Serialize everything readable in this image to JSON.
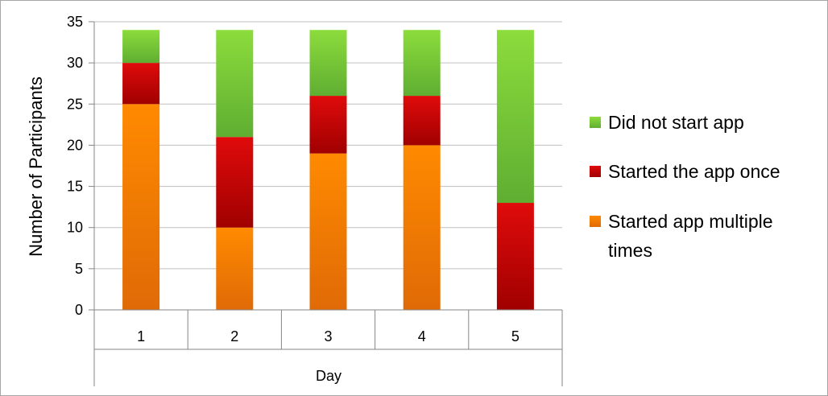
{
  "chart_data": {
    "type": "bar",
    "stacked": true,
    "categories": [
      "1",
      "2",
      "3",
      "4",
      "5"
    ],
    "series": [
      {
        "name": "Started app multiple times",
        "values": [
          25,
          10,
          19,
          20,
          0
        ],
        "color": "#f07d0a"
      },
      {
        "name": "Started the app once",
        "values": [
          5,
          11,
          7,
          6,
          13
        ],
        "color": "#c00000"
      },
      {
        "name": "Did not start app",
        "values": [
          4,
          13,
          8,
          8,
          21
        ],
        "color": "#7ac143"
      }
    ],
    "ylabel": "Number of Participants",
    "xlabel": "Day",
    "ylim": [
      0,
      35
    ],
    "yticks": [
      "0",
      "5",
      "10",
      "15",
      "20",
      "25",
      "30",
      "35"
    ],
    "grid": true,
    "legend_position": "right",
    "legend": [
      {
        "lines": [
          "Did not start app"
        ],
        "color": "#7ac143"
      },
      {
        "lines": [
          "Started the app once"
        ],
        "color": "#c00000"
      },
      {
        "lines": [
          "Started app multiple",
          "times"
        ],
        "color": "#f07d0a"
      }
    ]
  }
}
